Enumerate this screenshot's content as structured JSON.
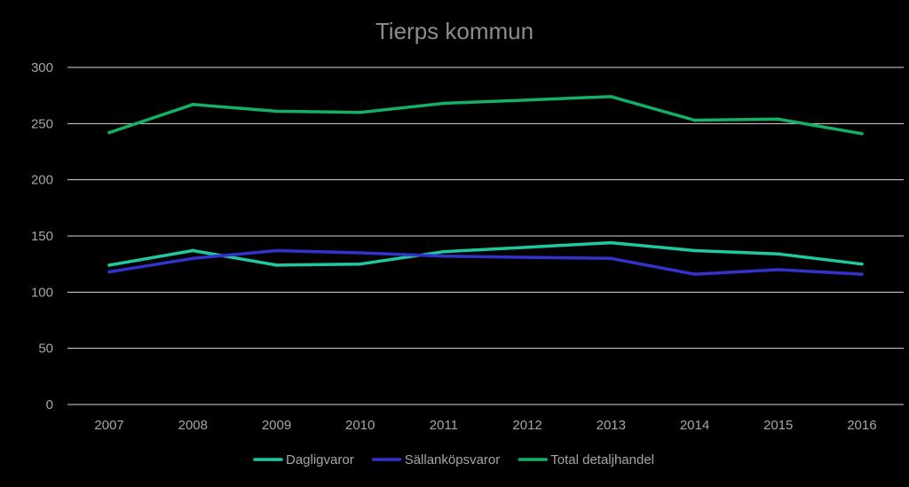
{
  "chart_data": {
    "type": "line",
    "title": "Tierps kommun",
    "xlabel": "",
    "ylabel": "",
    "categories": [
      "2007",
      "2008",
      "2009",
      "2010",
      "2011",
      "2012",
      "2013",
      "2014",
      "2015",
      "2016"
    ],
    "ylim": [
      0,
      300
    ],
    "yticks": [
      0,
      50,
      100,
      150,
      200,
      250,
      300
    ],
    "grid": true,
    "legend_position": "bottom",
    "series": [
      {
        "name": "Dagligvaror",
        "color": "#1fc9a0",
        "values": [
          124,
          137,
          124,
          125,
          136,
          140,
          144,
          137,
          134,
          125
        ]
      },
      {
        "name": "Sällanköpsvaror",
        "color": "#3333cc",
        "values": [
          118,
          130,
          137,
          135,
          132,
          131,
          130,
          116,
          120,
          116
        ]
      },
      {
        "name": "Total detaljhandel",
        "color": "#14b066",
        "values": [
          242,
          267,
          261,
          260,
          268,
          271,
          274,
          253,
          254,
          241
        ]
      }
    ]
  }
}
